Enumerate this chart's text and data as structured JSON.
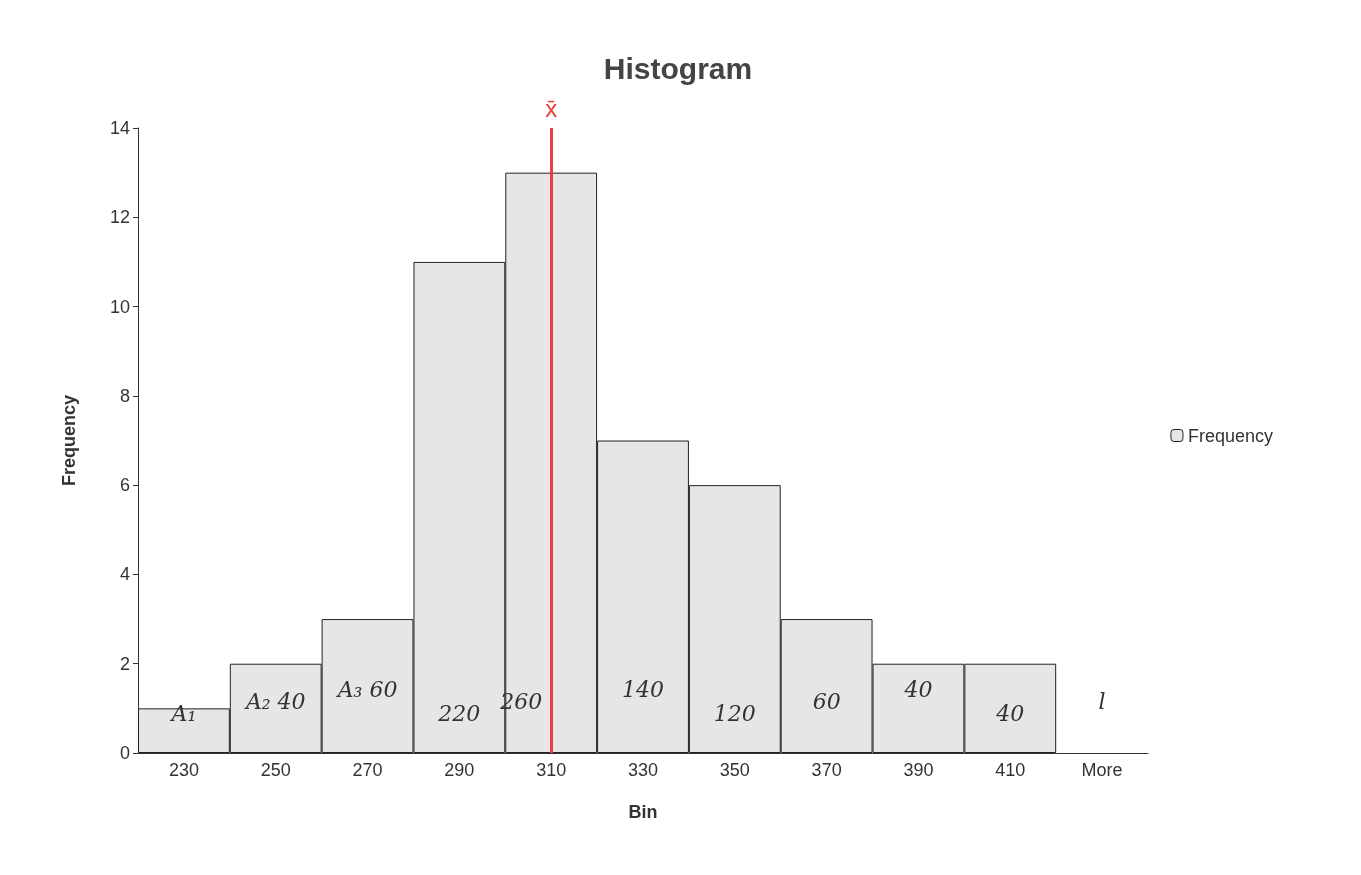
{
  "chart_data": {
    "type": "bar",
    "title": "Histogram",
    "xlabel": "Bin",
    "ylabel": "Frequency",
    "categories": [
      "230",
      "250",
      "270",
      "290",
      "310",
      "330",
      "350",
      "370",
      "390",
      "410",
      "More"
    ],
    "series": [
      {
        "name": "Frequency",
        "color": "#e6e6e6",
        "values": [
          1,
          2,
          3,
          11,
          13,
          7,
          6,
          3,
          2,
          2,
          0
        ]
      }
    ],
    "ylim": [
      0,
      14
    ],
    "yticks": [
      0,
      2,
      4,
      6,
      8,
      10,
      12,
      14
    ],
    "grid": false,
    "legend": "right",
    "ref_lines": [
      {
        "axis": "x",
        "value": "310",
        "label": "x̄",
        "color": "#e8403a"
      }
    ],
    "annotations": [
      "A₁",
      "A₂ 40",
      "A₃ 60",
      "220",
      "260",
      "140",
      "120",
      "60",
      "40",
      "40",
      "l"
    ]
  }
}
